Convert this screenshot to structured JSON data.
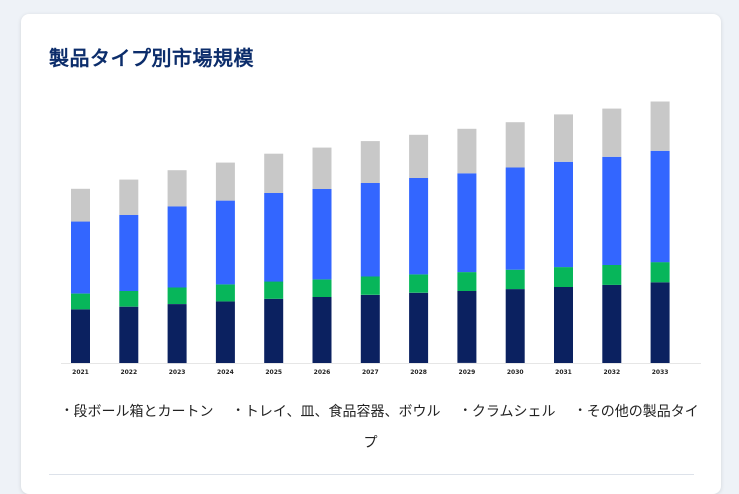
{
  "title": "製品タイプ別市場規模",
  "colors": {
    "title": "#0c2d6b",
    "card": "#ffffff",
    "page": "#eef2f7"
  },
  "chart_data": {
    "type": "bar",
    "stacked": true,
    "title": "",
    "xlabel": "",
    "ylabel": "",
    "ylim": [
      0,
      100
    ],
    "categories": [
      "2021",
      "2022",
      "2023",
      "2024",
      "2025",
      "2026",
      "2027",
      "2028",
      "2029",
      "2030",
      "2031",
      "2032",
      "2033"
    ],
    "series": [
      {
        "name": "段ボール箱とカートン",
        "color": "#0b2160",
        "values": [
          20.5,
          21.5,
          22.5,
          23.5,
          24.5,
          25.2,
          26.0,
          26.8,
          27.5,
          28.2,
          29.0,
          29.8,
          30.8
        ]
      },
      {
        "name": "トレイ、皿、食品容器、ボウル",
        "color": "#07b65a",
        "values": [
          6.0,
          6.0,
          6.3,
          6.5,
          6.6,
          6.7,
          7.0,
          7.0,
          7.2,
          7.4,
          7.6,
          7.6,
          7.7
        ]
      },
      {
        "name": "クラムシェル",
        "color": "#3366ff",
        "values": [
          27.5,
          29.0,
          31.0,
          32.0,
          33.8,
          34.5,
          35.7,
          36.8,
          37.7,
          39.0,
          40.2,
          41.3,
          42.5
        ]
      },
      {
        "name": "その他の製品タイプ",
        "color": "#c8c8c8",
        "values": [
          12.5,
          13.5,
          13.8,
          14.5,
          15.0,
          15.8,
          16.0,
          16.5,
          17.0,
          17.3,
          18.1,
          18.4,
          18.8
        ]
      }
    ],
    "legend_position": "bottom",
    "grid": false
  }
}
